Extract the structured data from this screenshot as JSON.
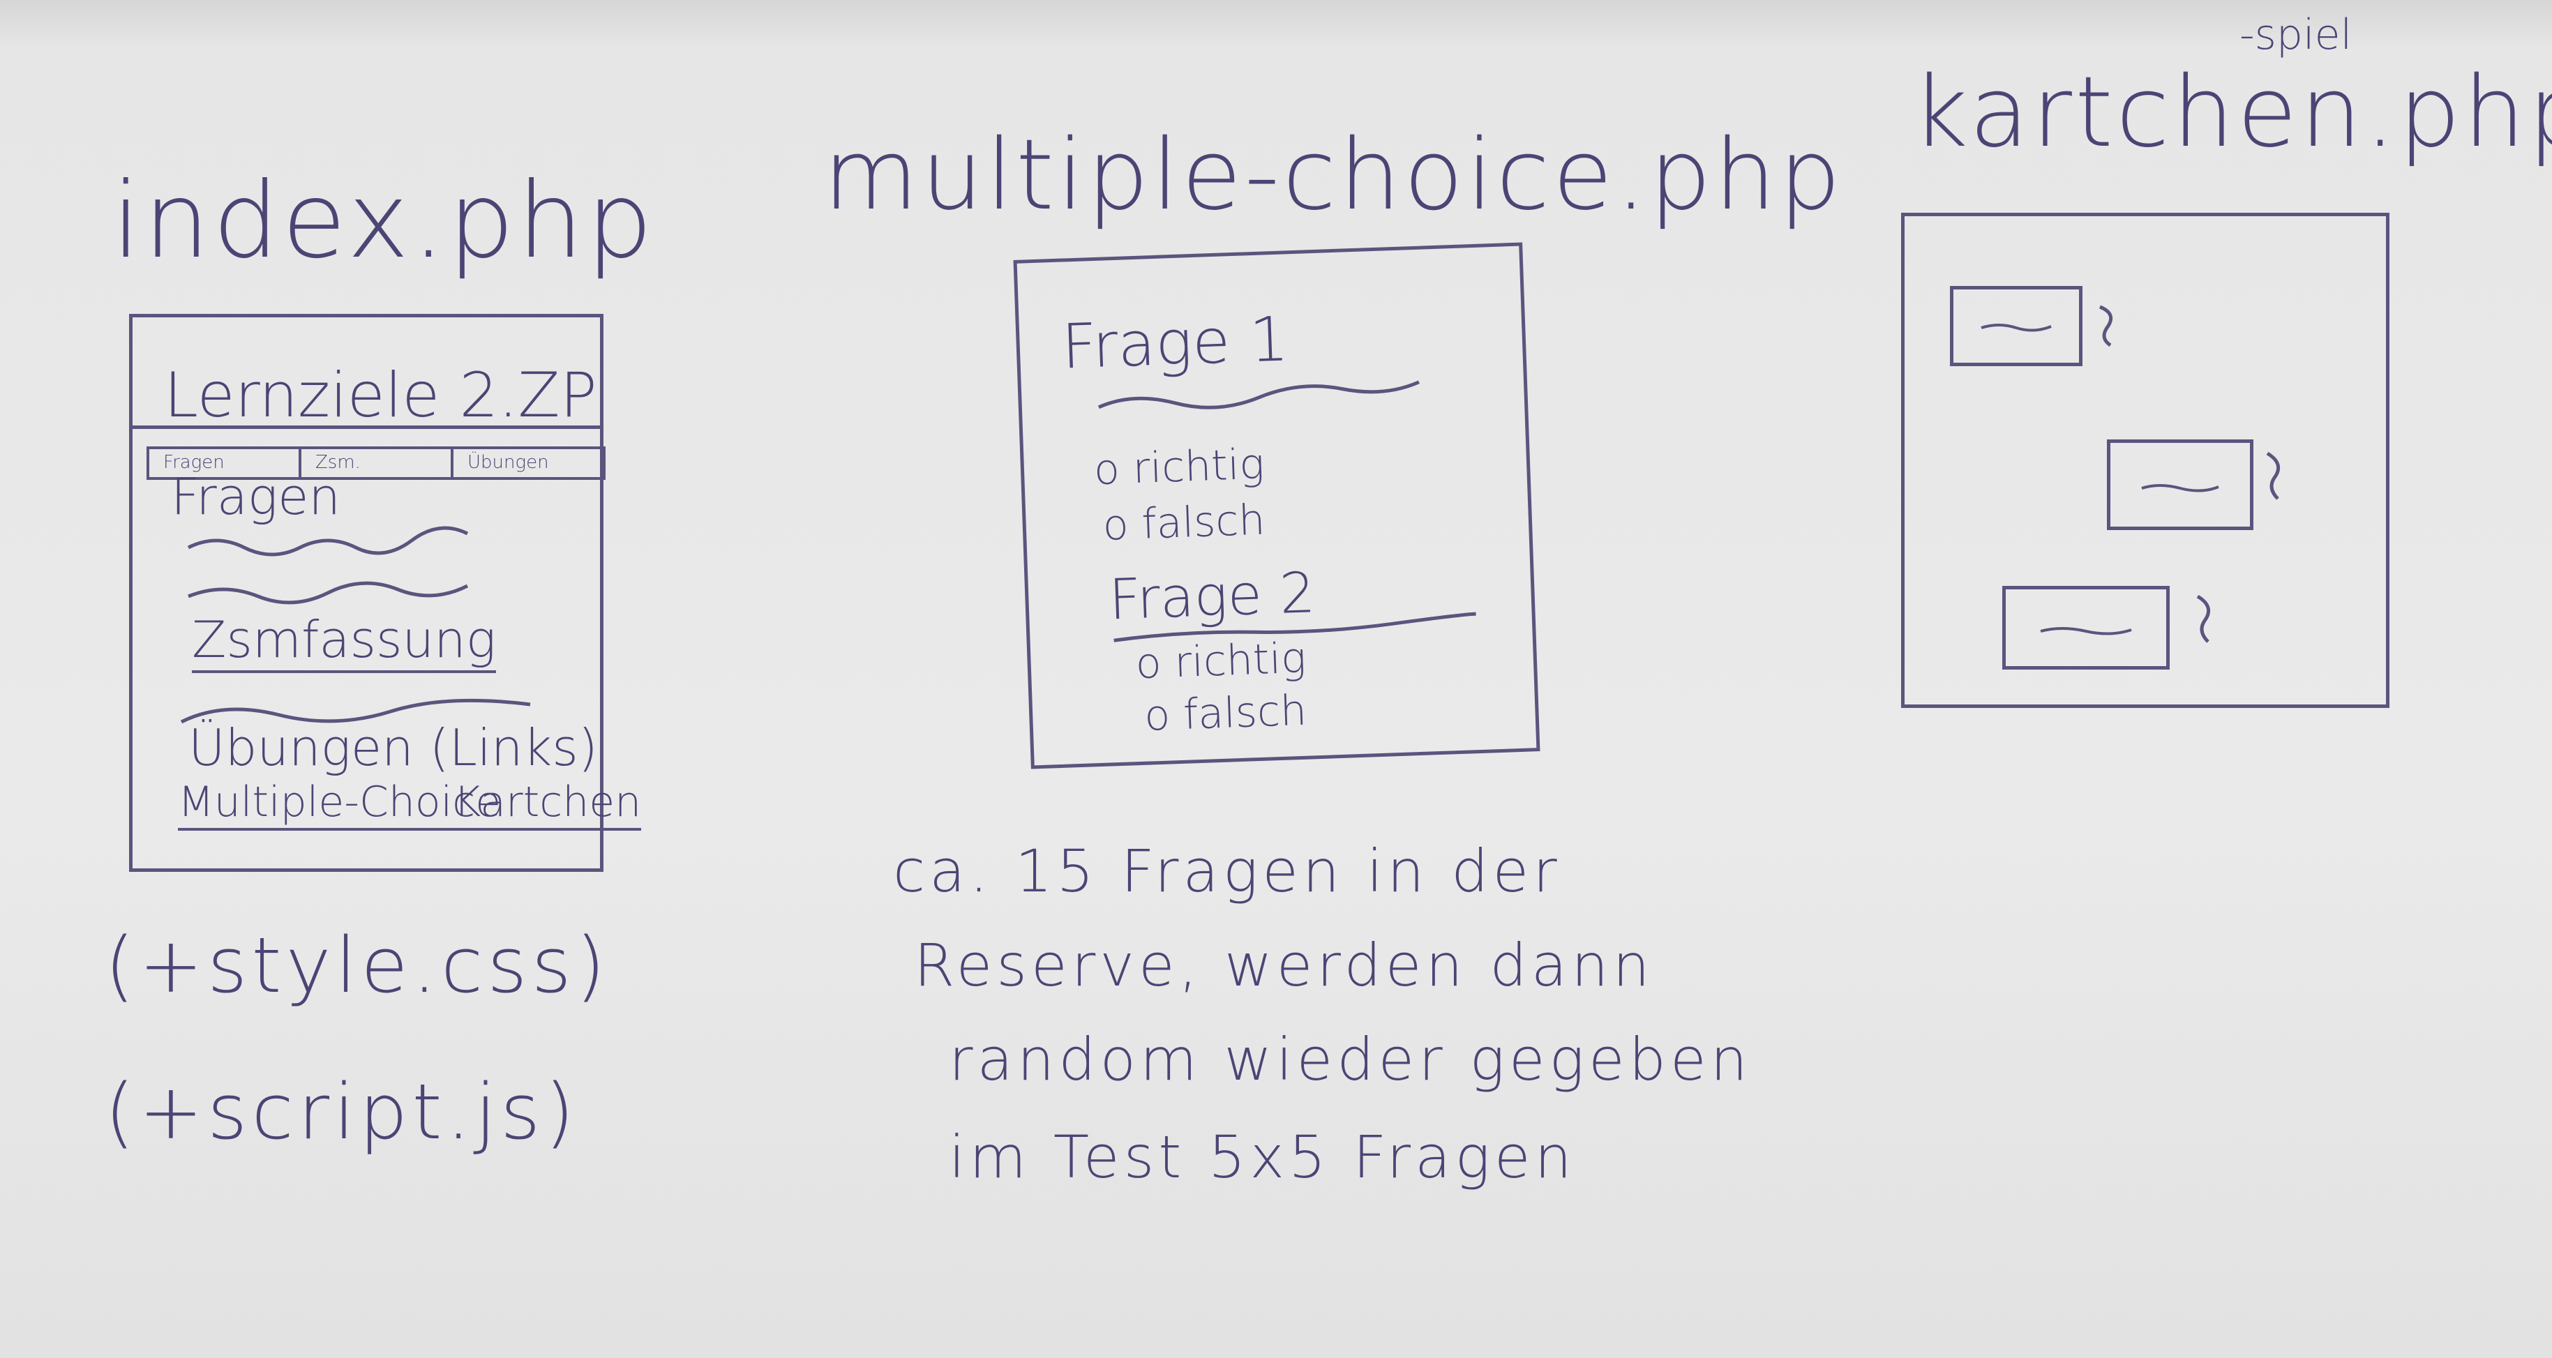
{
  "sketch": {
    "index": {
      "filename": "index.php",
      "header": "Lernziele 2.ZP",
      "nav": [
        "Fragen",
        "Zsm.",
        "Übungen"
      ],
      "section_fragen": "Fragen",
      "section_zsmfassung": "Zsmfassung",
      "section_uebungen": "Übungen (Links)",
      "link_multiple_choice": "Multiple-Choice",
      "link_kartchen": "Kartchen",
      "asset_style": "(+style.css)",
      "asset_script": "(+script.js)"
    },
    "multiple_choice": {
      "filename": "multiple-choice.php",
      "question_1": "Frage 1",
      "q1_option_a": "o richtig",
      "q1_option_b": "o falsch",
      "question_2": "Frage 2",
      "q2_option_a": "o richtig",
      "q2_option_b": "o falsch",
      "note_line_1": "ca. 15 Fragen in der",
      "note_line_2": "Reserve, werden dann",
      "note_line_3": "random wieder gegeben",
      "note_line_4": "im Test 5x5 Fragen"
    },
    "kartchen": {
      "filename": "kartchen.php",
      "filename_addition": "-spiel"
    }
  }
}
